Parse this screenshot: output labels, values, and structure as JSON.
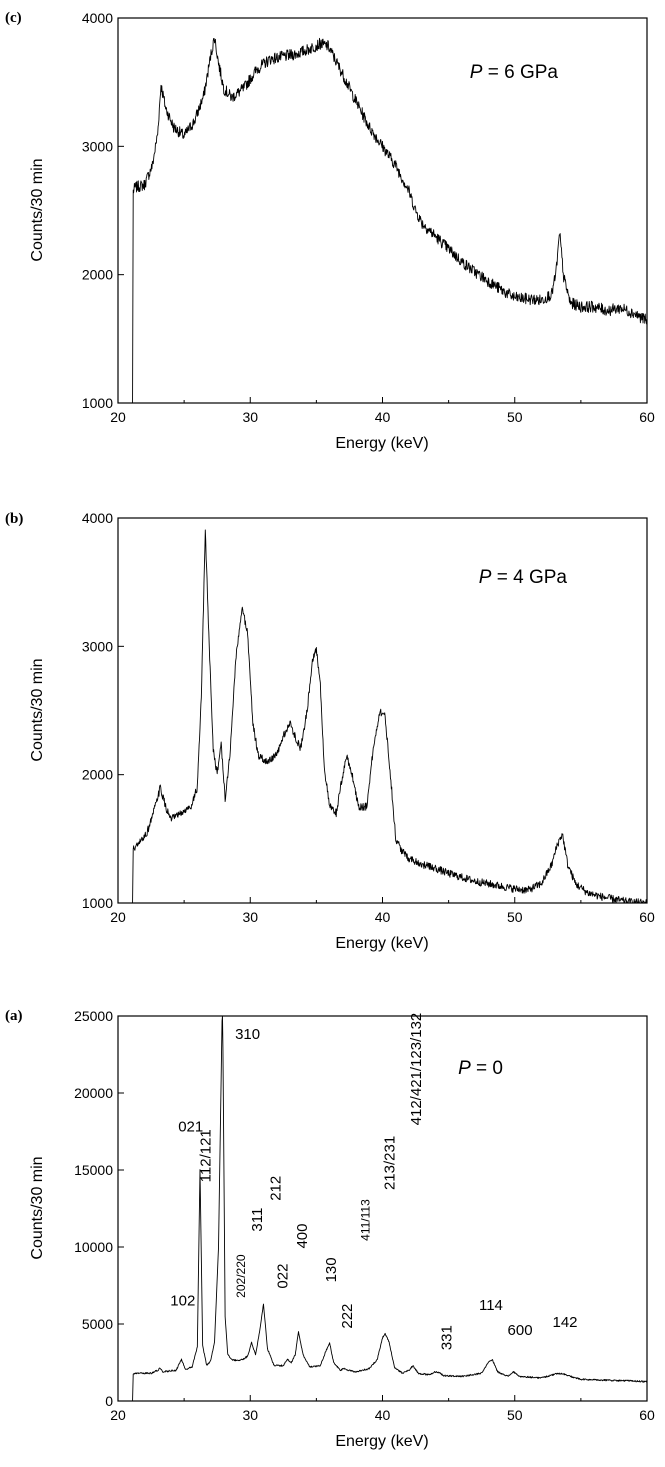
{
  "chart_data": [
    {
      "type": "line",
      "panel_tag": "(c)",
      "annotation": {
        "italic": "P",
        "rest": " = 6 GPa"
      },
      "xlabel": "Energy (keV)",
      "ylabel": "Counts/30 min",
      "xlim": [
        20,
        60
      ],
      "ylim": [
        1000,
        4000
      ],
      "xticks": [
        20,
        30,
        40,
        50,
        60
      ],
      "yticks": [
        1000,
        2000,
        3000,
        4000
      ],
      "noise": 45,
      "series": [
        {
          "x": [
            21.1,
            21.15,
            21.3,
            22.0,
            22.6,
            23.0,
            23.25,
            23.6,
            24.2,
            25.0,
            25.8,
            26.5,
            27.0,
            27.3,
            27.6,
            28.0,
            28.6,
            29.5,
            30.5,
            31.5,
            32.5,
            33.5,
            34.5,
            35.3,
            35.9,
            36.8,
            38.0,
            39.0,
            40.0,
            41.0,
            42.0,
            42.5,
            43.0,
            44.0,
            45.0,
            46.0,
            47.0,
            48.0,
            49.0,
            50.0,
            51.0,
            52.0,
            52.8,
            53.1,
            53.4,
            53.7,
            54.2,
            55.0,
            56.0,
            57.0,
            58.0,
            59.0,
            60.0
          ],
          "y": [
            1000,
            2650,
            2680,
            2700,
            2850,
            3100,
            3480,
            3300,
            3150,
            3080,
            3200,
            3400,
            3700,
            3850,
            3650,
            3450,
            3380,
            3450,
            3600,
            3680,
            3700,
            3720,
            3760,
            3800,
            3780,
            3600,
            3350,
            3150,
            3000,
            2850,
            2650,
            2500,
            2400,
            2300,
            2200,
            2100,
            2020,
            1950,
            1880,
            1820,
            1810,
            1800,
            1850,
            2000,
            2320,
            1980,
            1780,
            1750,
            1750,
            1720,
            1740,
            1700,
            1640
          ]
        }
      ]
    },
    {
      "type": "line",
      "panel_tag": "(b)",
      "annotation": {
        "italic": "P",
        "rest": " = 4 GPa"
      },
      "xlabel": "Energy (keV)",
      "ylabel": "Counts/30 min",
      "xlim": [
        20,
        60
      ],
      "ylim": [
        1000,
        4000
      ],
      "xticks": [
        20,
        30,
        40,
        50,
        60
      ],
      "yticks": [
        1000,
        2000,
        3000,
        4000
      ],
      "noise": 30,
      "series": [
        {
          "x": [
            21.1,
            21.15,
            21.5,
            22.2,
            22.9,
            23.2,
            23.6,
            24.0,
            24.8,
            25.5,
            26.0,
            26.3,
            26.6,
            26.9,
            27.2,
            27.5,
            27.8,
            28.1,
            28.5,
            28.9,
            29.4,
            29.8,
            30.2,
            30.6,
            31.2,
            32.0,
            32.5,
            33.0,
            33.4,
            33.8,
            34.3,
            34.7,
            35.0,
            35.3,
            35.6,
            36.0,
            36.5,
            37.0,
            37.3,
            37.7,
            38.2,
            38.8,
            39.3,
            39.8,
            40.2,
            40.6,
            41.0,
            41.5,
            42.0,
            43.0,
            44.0,
            45.0,
            46.0,
            47.0,
            48.0,
            49.0,
            50.0,
            51.0,
            52.0,
            52.8,
            53.2,
            53.6,
            54.0,
            54.6,
            55.5,
            56.5,
            57.5,
            58.5,
            60.0
          ],
          "y": [
            1000,
            1420,
            1450,
            1550,
            1780,
            1900,
            1750,
            1650,
            1700,
            1750,
            1900,
            2600,
            3900,
            3000,
            2200,
            2000,
            2250,
            1800,
            2200,
            2900,
            3300,
            3100,
            2400,
            2150,
            2100,
            2150,
            2300,
            2400,
            2300,
            2200,
            2500,
            2900,
            2980,
            2700,
            2050,
            1750,
            1700,
            2000,
            2150,
            2000,
            1750,
            1750,
            2200,
            2500,
            2450,
            2000,
            1500,
            1400,
            1350,
            1300,
            1270,
            1230,
            1200,
            1170,
            1150,
            1130,
            1110,
            1100,
            1150,
            1300,
            1450,
            1540,
            1300,
            1150,
            1080,
            1050,
            1030,
            1010,
            1000
          ]
        }
      ]
    },
    {
      "type": "line",
      "panel_tag": "(a)",
      "annotation": {
        "italic": "P",
        "rest": " = 0"
      },
      "xlabel": "Energy (keV)",
      "ylabel": "Counts/30 min",
      "xlim": [
        20,
        60
      ],
      "ylim": [
        0,
        25000
      ],
      "xticks": [
        20,
        30,
        40,
        50,
        60
      ],
      "yticks": [
        0,
        5000,
        10000,
        15000,
        20000,
        25000
      ],
      "noise": 50,
      "series": [
        {
          "x": [
            21.1,
            21.15,
            21.5,
            22.5,
            23.0,
            23.2,
            23.4,
            24.4,
            24.8,
            25.1,
            25.6,
            26.0,
            26.2,
            26.4,
            26.7,
            27.0,
            27.3,
            27.6,
            27.9,
            28.1,
            28.3,
            28.6,
            29.2,
            29.8,
            30.1,
            30.4,
            30.7,
            31.0,
            31.3,
            31.8,
            32.5,
            32.8,
            33.1,
            33.4,
            33.65,
            34.0,
            34.5,
            35.3,
            35.7,
            36.0,
            36.3,
            36.8,
            37.1,
            37.4,
            38.0,
            39.0,
            39.6,
            40.0,
            40.2,
            40.5,
            40.9,
            41.5,
            42.0,
            42.3,
            42.7,
            43.5,
            44.0,
            44.3,
            44.6,
            46.0,
            47.5,
            48.0,
            48.3,
            48.7,
            49.5,
            49.9,
            50.3,
            52.0,
            53.3,
            53.7,
            54.2,
            55.0,
            57.0,
            59.0,
            60.0
          ],
          "y": [
            0,
            1750,
            1800,
            1800,
            2000,
            2150,
            1900,
            2000,
            2700,
            2050,
            2200,
            3500,
            15000,
            3600,
            2300,
            2600,
            3800,
            10000,
            26500,
            5500,
            3000,
            2700,
            2600,
            2900,
            3800,
            3000,
            4500,
            6300,
            3400,
            2300,
            2300,
            2700,
            2500,
            3000,
            4500,
            3000,
            2200,
            2300,
            3200,
            3800,
            2500,
            2000,
            2100,
            2000,
            1900,
            2100,
            2700,
            4100,
            4400,
            3800,
            2200,
            1800,
            2000,
            2300,
            1800,
            1700,
            1900,
            1850,
            1650,
            1600,
            1800,
            2500,
            2700,
            1900,
            1600,
            1900,
            1600,
            1500,
            1800,
            1750,
            1600,
            1400,
            1350,
            1300,
            1250
          ]
        }
      ],
      "peak_labels": [
        {
          "text": "102",
          "x": 24.9,
          "y": 6200,
          "rotate": false,
          "size": "normal"
        },
        {
          "text": "021",
          "x": 25.5,
          "y": 17500,
          "rotate": false,
          "size": "normal"
        },
        {
          "text": "112/121",
          "x": 27.0,
          "y": 14200,
          "rotate": true,
          "size": "normal"
        },
        {
          "text": "310",
          "x": 29.8,
          "y": 23500,
          "rotate": false,
          "size": "normal"
        },
        {
          "text": "202/220",
          "x": 29.6,
          "y": 6700,
          "rotate": true,
          "size": "small"
        },
        {
          "text": "311",
          "x": 30.9,
          "y": 11000,
          "rotate": true,
          "size": "normal"
        },
        {
          "text": "212",
          "x": 32.3,
          "y": 13000,
          "rotate": true,
          "size": "normal"
        },
        {
          "text": "022",
          "x": 32.8,
          "y": 7300,
          "rotate": true,
          "size": "normal"
        },
        {
          "text": "400",
          "x": 34.3,
          "y": 9900,
          "rotate": true,
          "size": "normal"
        },
        {
          "text": "130",
          "x": 36.5,
          "y": 7700,
          "rotate": true,
          "size": "normal"
        },
        {
          "text": "222",
          "x": 37.7,
          "y": 4700,
          "rotate": true,
          "size": "normal"
        },
        {
          "text": "411/113",
          "x": 39.0,
          "y": 10400,
          "rotate": true,
          "size": "small"
        },
        {
          "text": "213/231",
          "x": 40.9,
          "y": 13700,
          "rotate": true,
          "size": "normal"
        },
        {
          "text": "412/421/123/132",
          "x": 42.9,
          "y": 17900,
          "rotate": true,
          "size": "normal"
        },
        {
          "text": "331",
          "x": 45.2,
          "y": 3300,
          "rotate": true,
          "size": "normal"
        },
        {
          "text": "114",
          "x": 48.2,
          "y": 5900,
          "rotate": false,
          "size": "normal"
        },
        {
          "text": "600",
          "x": 50.4,
          "y": 4300,
          "rotate": false,
          "size": "normal"
        },
        {
          "text": "142",
          "x": 53.8,
          "y": 4800,
          "rotate": false,
          "size": "normal"
        }
      ]
    }
  ]
}
